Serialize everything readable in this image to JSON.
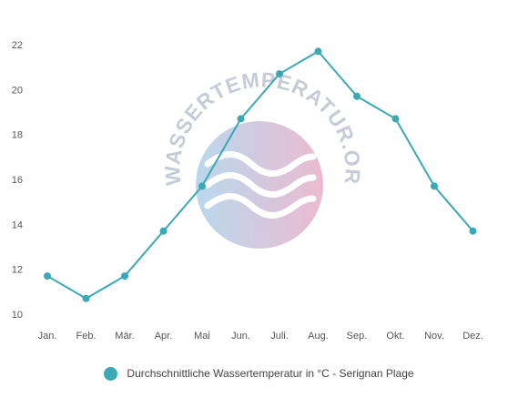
{
  "chart_data": {
    "type": "line",
    "categories": [
      "Jan.",
      "Feb.",
      "Mär.",
      "Apr.",
      "Mai",
      "Jun.",
      "Juli.",
      "Aug.",
      "Sep.",
      "Okt.",
      "Nov.",
      "Dez."
    ],
    "series": [
      {
        "name": "Durchschnittliche Wassertemperatur in °C - Serignan Plage",
        "values": [
          11.7,
          10.7,
          11.7,
          13.7,
          15.7,
          18.7,
          20.7,
          21.7,
          19.7,
          18.7,
          15.7,
          13.7
        ],
        "color": "#3aa9b3"
      }
    ],
    "yticks": [
      10,
      12,
      14,
      16,
      18,
      20,
      22
    ],
    "ylim": [
      10,
      22
    ],
    "grid": false,
    "legend_position": "bottom-center"
  },
  "watermark": {
    "text": "WASSERTEMPERATUR.ORG",
    "colors": {
      "wave_left": "#a9cfe9",
      "wave_right": "#e7aac5"
    }
  }
}
